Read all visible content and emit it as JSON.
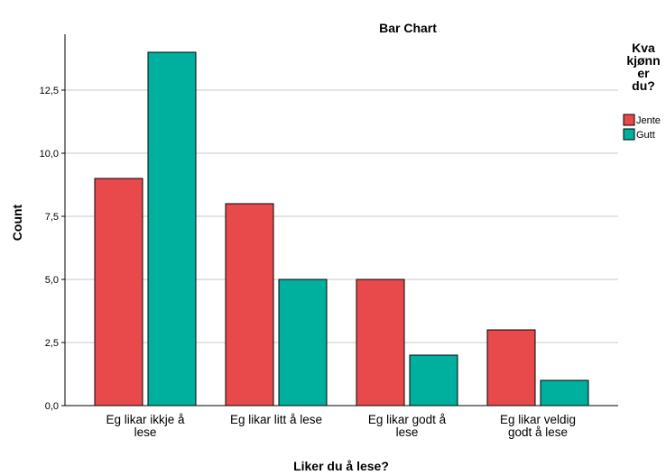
{
  "chart_data": {
    "type": "bar",
    "title": "Bar Chart",
    "xlabel": "Liker du å lese?",
    "ylabel": "Count",
    "categories": [
      [
        "Eg likar ikkje å",
        "lese"
      ],
      [
        "Eg likar litt å lese"
      ],
      [
        "Eg likar godt å",
        "lese"
      ],
      [
        "Eg likar veldig",
        "godt å lese"
      ]
    ],
    "series": [
      {
        "name": "Jente",
        "color": "#e84a4c",
        "values": [
          9,
          8,
          5,
          3
        ]
      },
      {
        "name": "Gutt",
        "color": "#00b09f",
        "values": [
          14,
          5,
          2,
          1
        ]
      }
    ],
    "ylim": [
      0,
      15
    ],
    "yticks": [
      0,
      2.5,
      5,
      7.5,
      10,
      12.5
    ],
    "ytick_labels": [
      "0,0",
      "2,5",
      "5,0",
      "7,5",
      "10,0",
      "12,5"
    ],
    "grid": true,
    "legend": {
      "title": [
        "Kva",
        "kjønn",
        "er",
        "du?"
      ],
      "placement": "right"
    }
  }
}
